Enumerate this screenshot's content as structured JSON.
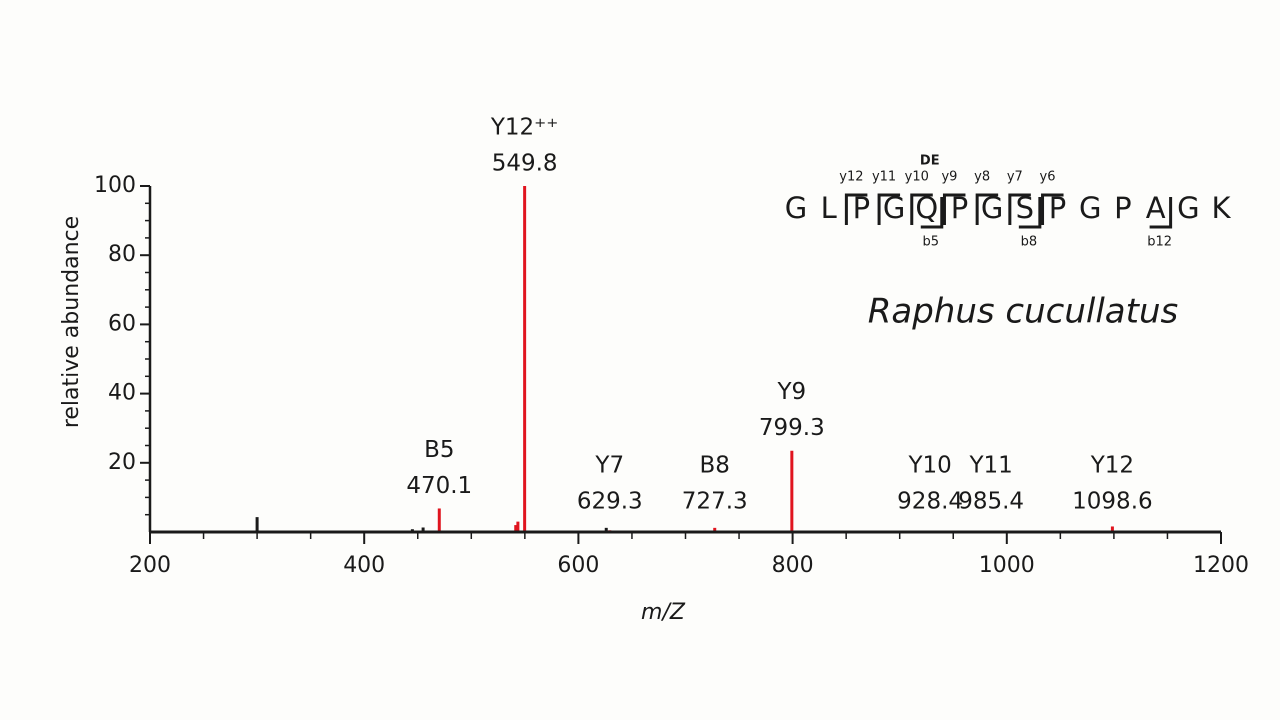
{
  "chart_data": {
    "type": "spectrum",
    "xlabel": "m/Z",
    "ylabel": "relative abundance",
    "xlim": [
      200,
      1200
    ],
    "ylim": [
      0,
      100
    ],
    "xticks": [
      200,
      400,
      600,
      800,
      1000,
      1200
    ],
    "yticks": [
      20,
      40,
      60,
      80,
      100
    ],
    "xminorticks": [
      250,
      300,
      350,
      450,
      500,
      550,
      650,
      700,
      750,
      850,
      900,
      950,
      1050,
      1100,
      1150
    ],
    "yminorticks": [
      5,
      10,
      15,
      25,
      30,
      35,
      45,
      50,
      55,
      65,
      70,
      75,
      85,
      90,
      95
    ],
    "series": [
      {
        "color": "#e0141e",
        "x": [
          470.1,
          541.5,
          543.5,
          549.8,
          629.3,
          727.3,
          799.3,
          928.4,
          985.4,
          1098.6
        ],
        "values": [
          6.8,
          2,
          3,
          100,
          0.5,
          1.2,
          23.5,
          0.3,
          0.3,
          1.6
        ],
        "ions": [
          "B5",
          null,
          null,
          "Y12⁺⁺",
          "Y7",
          "B8",
          "Y9",
          "Y10",
          "Y11",
          "Y12"
        ]
      },
      {
        "color": "#1a1a1a",
        "x": [
          300,
          445,
          455,
          626
        ],
        "values": [
          4.3,
          0.8,
          1.3,
          1.2
        ]
      }
    ]
  },
  "sequence": {
    "residues": [
      "G",
      "L",
      "P",
      "G",
      "Q",
      "P",
      "G",
      "S",
      "P",
      "G",
      "P",
      "A",
      "G",
      "K"
    ],
    "y_ions": [
      null,
      null,
      "y12",
      "y11",
      "y10",
      "y9",
      "y8",
      "y7",
      "y6",
      null,
      null,
      null,
      null,
      null
    ],
    "b_ions": [
      null,
      null,
      null,
      null,
      "b5",
      null,
      null,
      "b8",
      null,
      null,
      null,
      "b12",
      null,
      null
    ],
    "modifications": [
      null,
      null,
      null,
      null,
      "DE",
      null,
      null,
      null,
      null,
      null,
      null,
      null,
      null,
      null
    ]
  },
  "species": "Raphus cucullatus"
}
